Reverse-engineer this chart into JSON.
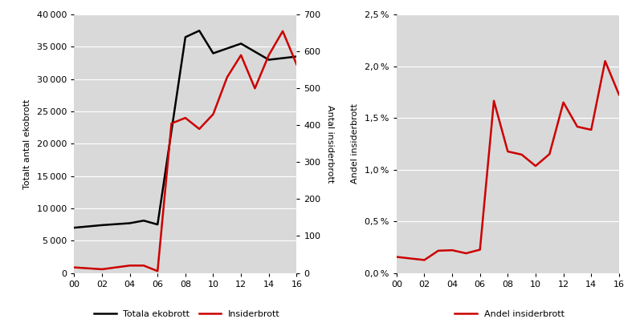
{
  "left_chart": {
    "ylabel_left": "Totalt antal ekobrott",
    "ylabel_right": "Antal insiderbrott",
    "ekobrott_x": [
      0,
      2,
      4,
      5,
      6,
      8,
      9,
      10,
      12,
      14,
      16
    ],
    "ekobrott_values": [
      7000,
      7400,
      7700,
      8100,
      7500,
      36500,
      37500,
      34000,
      35500,
      33000,
      33500
    ],
    "insiderbrott_x": [
      0,
      2,
      4,
      5,
      6,
      7,
      8,
      9,
      10,
      11,
      12,
      13,
      14,
      15,
      16
    ],
    "insiderbrott_values": [
      15,
      10,
      20,
      20,
      5,
      405,
      420,
      390,
      430,
      530,
      590,
      500,
      590,
      655,
      565
    ],
    "ylim_left": [
      0,
      40000
    ],
    "ylim_right": [
      0,
      700
    ],
    "yticks_left": [
      0,
      5000,
      10000,
      15000,
      20000,
      25000,
      30000,
      35000,
      40000
    ],
    "yticks_right": [
      0,
      100,
      200,
      300,
      400,
      500,
      600,
      700
    ],
    "legend_labels": [
      "Totala ekobrott",
      "Insiderbrott"
    ],
    "line_colors": [
      "#000000",
      "#cc0000"
    ],
    "bg_color": "#d9d9d9",
    "line_width": 1.8
  },
  "right_chart": {
    "ylabel": "Andel insiderbrott",
    "andel_x": [
      0,
      2,
      3,
      4,
      5,
      6,
      7,
      8,
      9,
      10,
      11,
      12,
      13,
      14,
      15,
      16
    ],
    "andel_values": [
      0.00155,
      0.00125,
      0.00215,
      0.0022,
      0.0019,
      0.00225,
      0.01665,
      0.01175,
      0.01145,
      0.01035,
      0.0115,
      0.0165,
      0.01415,
      0.01385,
      0.0205,
      0.01725
    ],
    "ylim": [
      0,
      0.025
    ],
    "yticks": [
      0,
      0.005,
      0.01,
      0.015,
      0.02,
      0.025
    ],
    "legend_label": "Andel insiderbrott",
    "line_color": "#cc0000",
    "bg_color": "#d9d9d9",
    "line_width": 1.8
  },
  "xtick_labels": [
    "00",
    "02",
    "04",
    "06",
    "08",
    "10",
    "12",
    "14",
    "16"
  ],
  "xtick_positions": [
    0,
    2,
    4,
    6,
    8,
    10,
    12,
    14,
    16
  ],
  "bg_color": "#ffffff",
  "grid_color": "#ffffff",
  "tick_fontsize": 8,
  "label_fontsize": 8
}
